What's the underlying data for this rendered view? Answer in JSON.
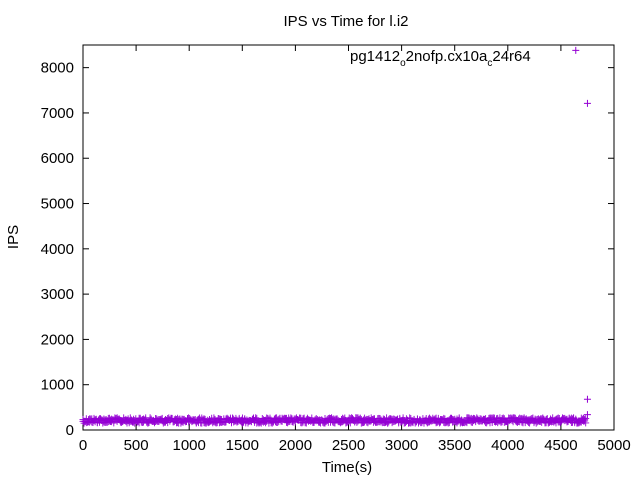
{
  "chart_data": {
    "type": "scatter",
    "title": "IPS vs Time for l.i2",
    "xlabel": "Time(s)",
    "ylabel": "IPS",
    "xlim": [
      0,
      5000
    ],
    "ylim": [
      0,
      8500
    ],
    "x_ticks": [
      "0",
      "500",
      "1000",
      "1500",
      "2000",
      "2500",
      "3000",
      "3500",
      "4000",
      "4500",
      "5000"
    ],
    "y_ticks": [
      "0",
      "1000",
      "2000",
      "3000",
      "4000",
      "5000",
      "6000",
      "7000",
      "8000"
    ],
    "grid": false,
    "legend_position": "top-right",
    "marker": "plus",
    "color": "#9400d3",
    "series": [
      {
        "name_parts": [
          "pg1412",
          "o",
          "2nofp.cx10a",
          "c",
          "24r64"
        ],
        "band": {
          "x_range": [
            0,
            4740
          ],
          "y_range": [
            150,
            270
          ]
        },
        "points": [
          {
            "x": 4640,
            "y": 8380
          },
          {
            "x": 4750,
            "y": 7210
          },
          {
            "x": 4750,
            "y": 680
          },
          {
            "x": 4750,
            "y": 340
          }
        ]
      }
    ]
  }
}
